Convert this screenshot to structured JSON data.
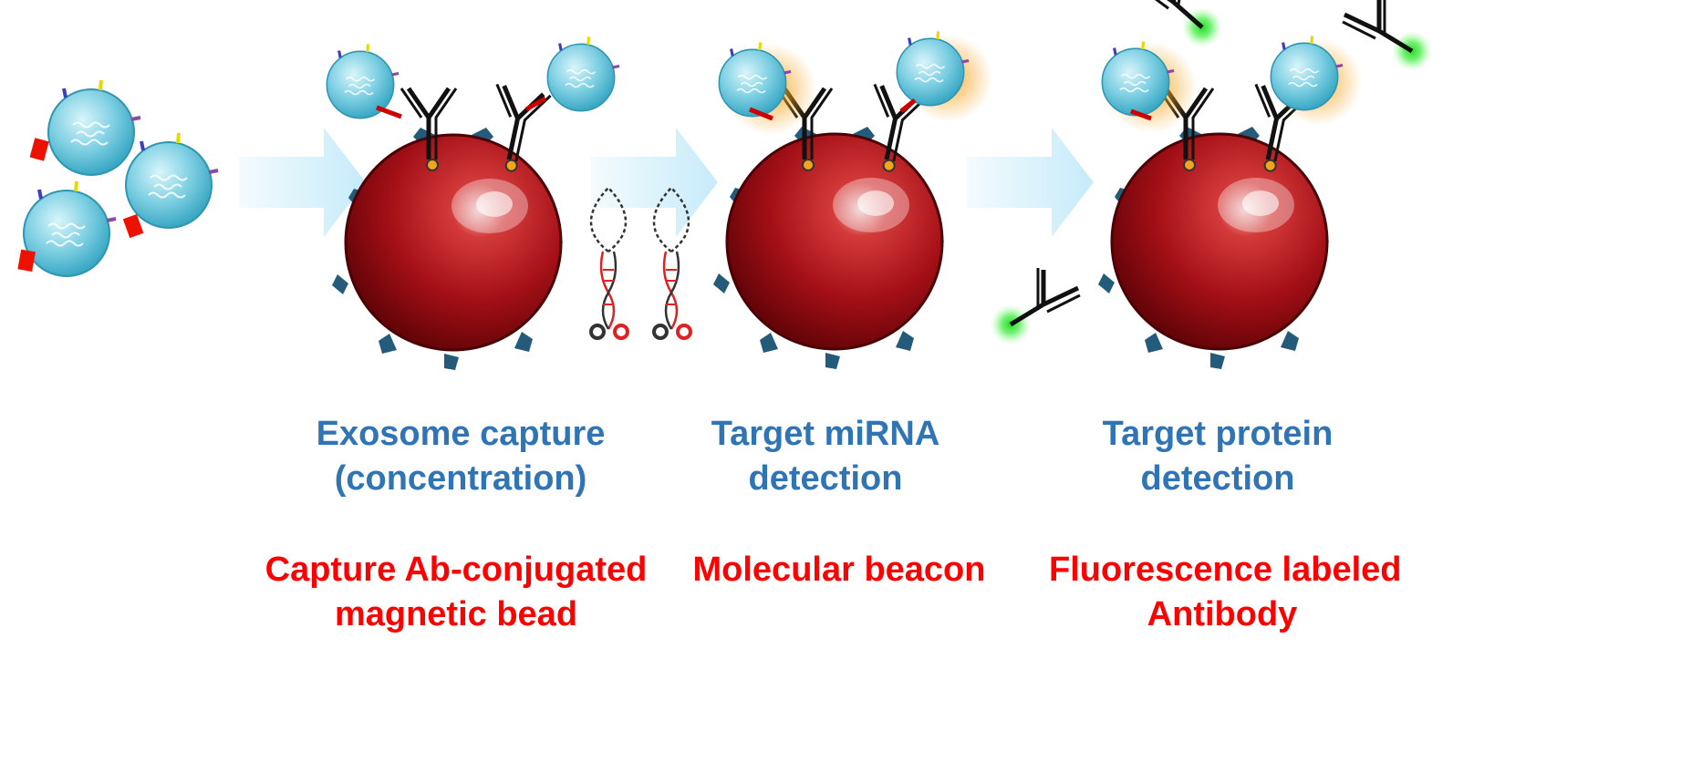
{
  "colors": {
    "exosome": "#7fd0e3",
    "bead": "#9b0a12",
    "arrow": "#cfeefb",
    "antibody": "#111111",
    "step_text": "#2f74b5",
    "reagent_text": "#ff0000",
    "fluorescence": "#33dd33",
    "beacon_signal": "#f5a623"
  },
  "steps": [
    {
      "title_lines": [
        "Exosome capture",
        "(concentration)"
      ],
      "reagent_lines": [
        "Capture Ab-conjugated",
        "magnetic bead"
      ]
    },
    {
      "title_lines": [
        "Target miRNA",
        "detection"
      ],
      "reagent_lines": [
        "Molecular beacon"
      ]
    },
    {
      "title_lines": [
        "Target protein",
        "detection"
      ],
      "reagent_lines": [
        "Fluorescence labeled",
        "Antibody"
      ]
    }
  ],
  "icons": [
    "exosome-icon",
    "magnetic-bead-icon",
    "capture-antibody-icon",
    "molecular-beacon-icon",
    "labeled-antibody-icon",
    "process-arrow-icon"
  ]
}
